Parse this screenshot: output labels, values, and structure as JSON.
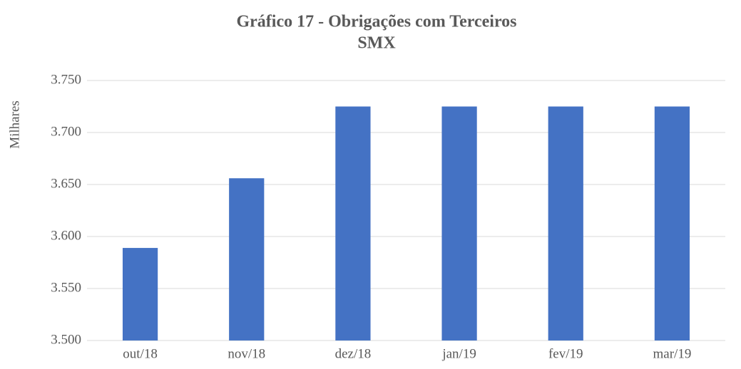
{
  "chart_data": {
    "type": "bar",
    "title": "Gráfico 17 - Obrigações com Terceiros",
    "subtitle": "SMX",
    "y_label": "Milhares",
    "categories": [
      "out/18",
      "nov/18",
      "dez/18",
      "jan/19",
      "fev/19",
      "mar/19"
    ],
    "values": [
      3589,
      3656,
      3725,
      3725,
      3725,
      3725
    ],
    "color": "#4472c4",
    "ylim": [
      3500,
      3750
    ],
    "yticks": [
      {
        "value": 3500,
        "label": "3.500"
      },
      {
        "value": 3550,
        "label": "3.550"
      },
      {
        "value": 3600,
        "label": "3.600"
      },
      {
        "value": 3650,
        "label": "3.650"
      },
      {
        "value": 3700,
        "label": "3.700"
      },
      {
        "value": 3750,
        "label": "3.750"
      }
    ],
    "grid": true
  }
}
